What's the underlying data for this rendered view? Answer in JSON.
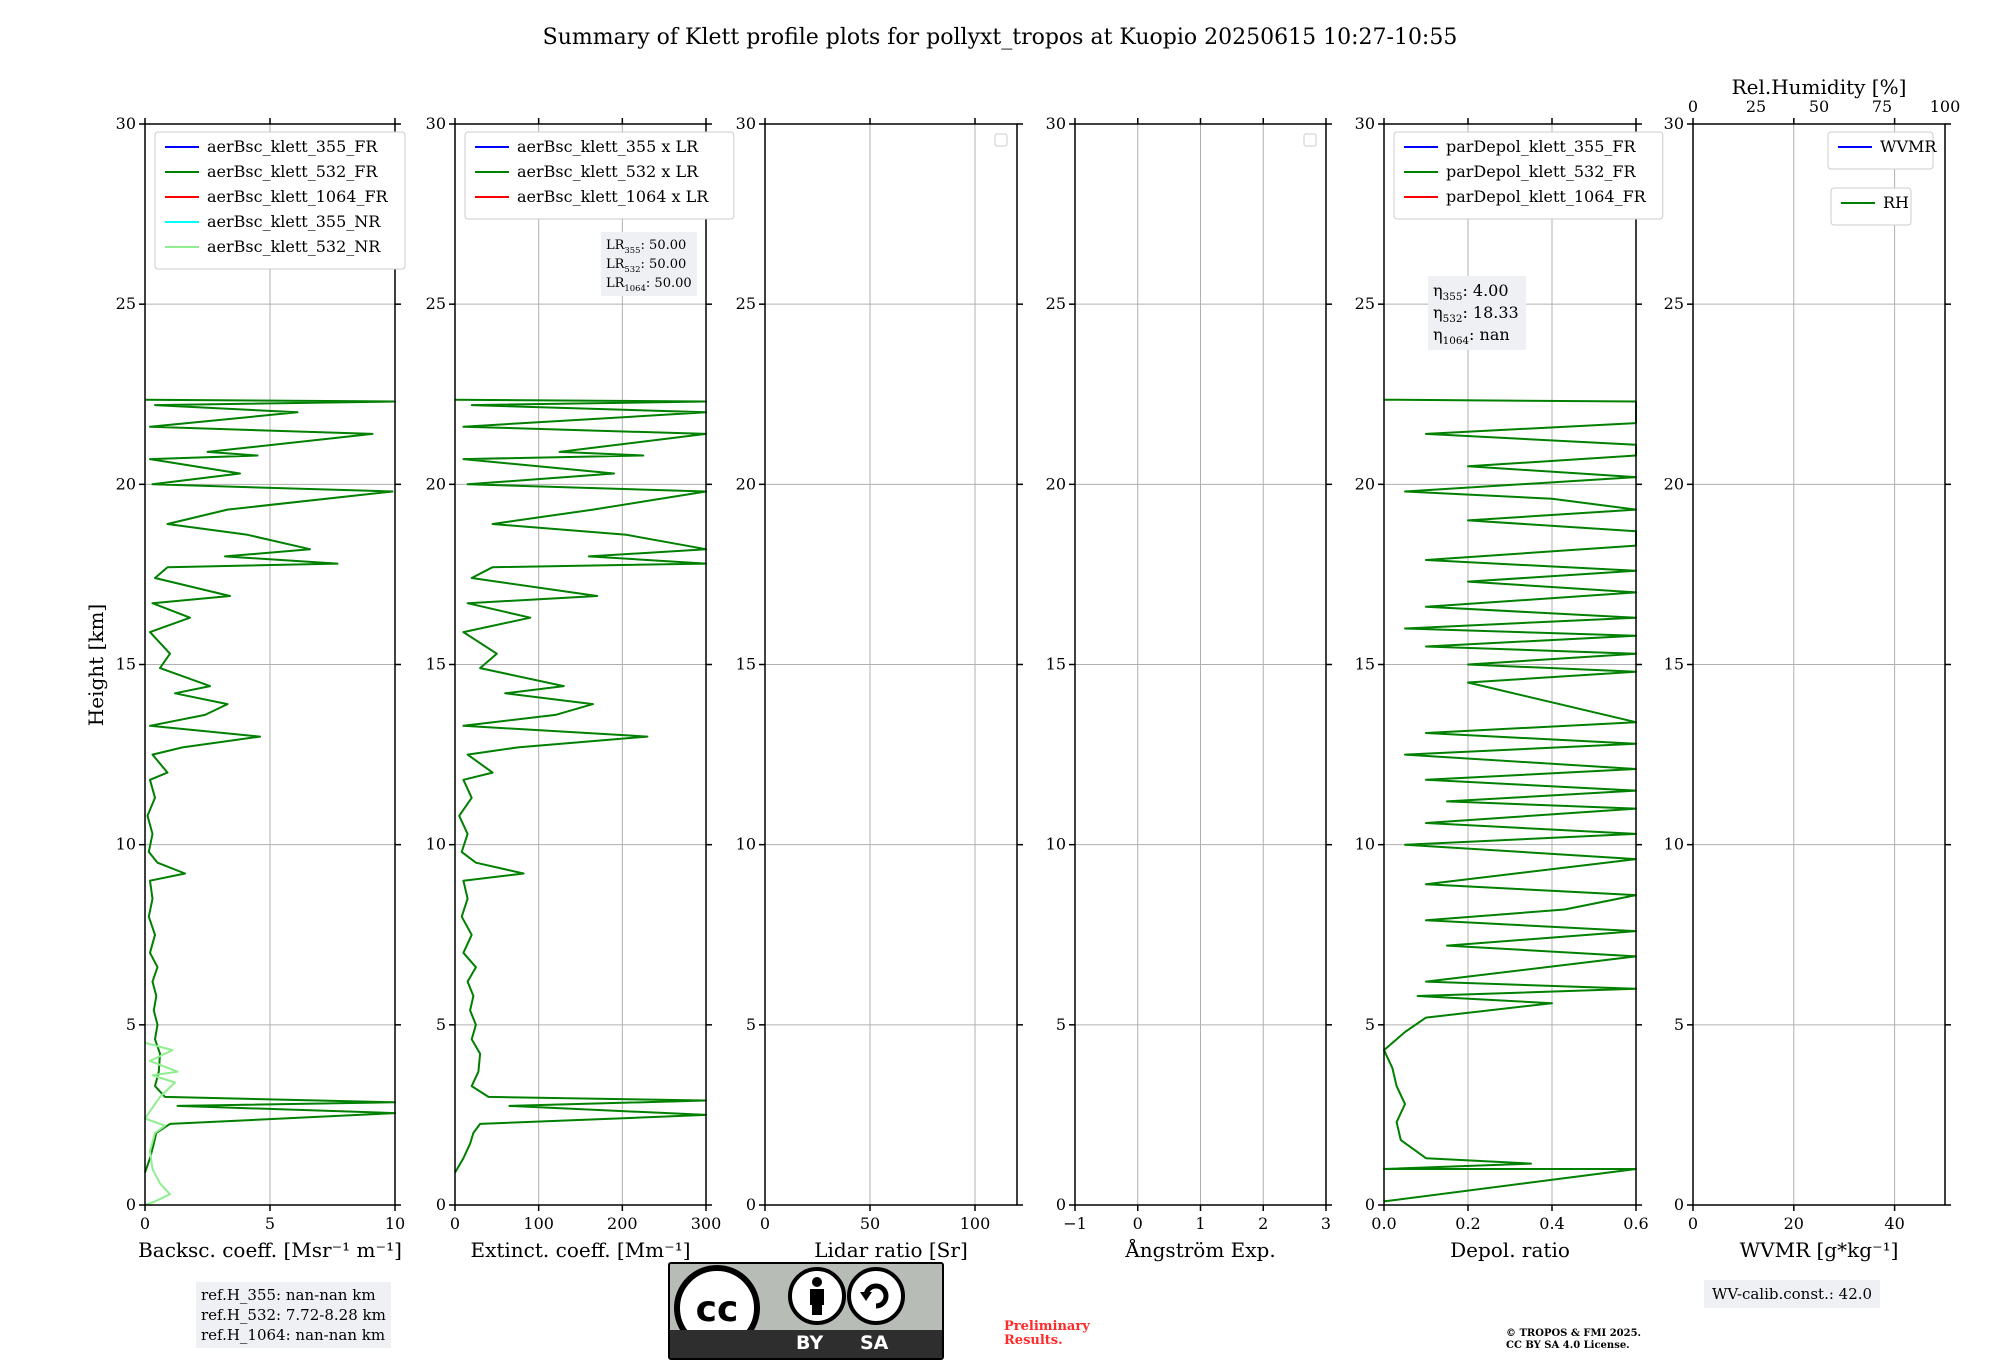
{
  "title": "Summary of Klett profile plots for pollyxt_tropos at Kuopio 20250615 10:27-10:55",
  "y_label": "Height [km]",
  "y_ticks": [
    "0",
    "5",
    "10",
    "15",
    "20",
    "25",
    "30"
  ],
  "colors": {
    "blue": "#0000ff",
    "green": "#008000",
    "red": "#ff0000",
    "cyan": "#00ffff",
    "lightgreen": "#90ee90",
    "grid": "#b0b0b0",
    "note_bg": "#eef0f3"
  },
  "chart_data": [
    {
      "type": "line",
      "id": "bsc",
      "xlabel": "Backsc. coeff. [Msr⁻¹ m⁻¹]",
      "xlim": [
        0,
        10
      ],
      "ylim": [
        0,
        30
      ],
      "x_ticks": [
        0,
        5,
        10
      ],
      "x_tick_labels": [
        "0",
        "5",
        "10"
      ],
      "legend": [
        "aerBsc_klett_355_FR",
        "aerBsc_klett_532_FR",
        "aerBsc_klett_1064_FR",
        "aerBsc_klett_355_NR",
        "aerBsc_klett_532_NR"
      ],
      "legend_colors": [
        "blue",
        "green",
        "red",
        "cyan",
        "lightgreen"
      ],
      "series": [
        {
          "name": "aerBsc_klett_532_FR",
          "color": "green",
          "points": [
            [
              0.0,
              0.9
            ],
            [
              0.2,
              1.3
            ],
            [
              0.35,
              1.7
            ],
            [
              0.45,
              2.0
            ],
            [
              1.0,
              2.25
            ],
            [
              10,
              2.55
            ],
            [
              1.3,
              2.75
            ],
            [
              10,
              2.85
            ],
            [
              0.8,
              3.0
            ],
            [
              0.4,
              3.3
            ],
            [
              0.55,
              3.7
            ],
            [
              0.6,
              4.2
            ],
            [
              0.4,
              4.6
            ],
            [
              0.5,
              5.0
            ],
            [
              0.35,
              5.4
            ],
            [
              0.45,
              5.8
            ],
            [
              0.3,
              6.2
            ],
            [
              0.5,
              6.6
            ],
            [
              0.2,
              7.0
            ],
            [
              0.4,
              7.5
            ],
            [
              0.15,
              8.0
            ],
            [
              0.3,
              8.5
            ],
            [
              0.2,
              9.0
            ],
            [
              1.6,
              9.2
            ],
            [
              0.5,
              9.5
            ],
            [
              0.15,
              9.8
            ],
            [
              0.3,
              10.3
            ],
            [
              0.1,
              10.8
            ],
            [
              0.4,
              11.3
            ],
            [
              0.2,
              11.8
            ],
            [
              0.9,
              12.0
            ],
            [
              0.3,
              12.5
            ],
            [
              1.5,
              12.7
            ],
            [
              4.6,
              13.0
            ],
            [
              0.2,
              13.3
            ],
            [
              2.4,
              13.6
            ],
            [
              3.3,
              13.9
            ],
            [
              1.2,
              14.2
            ],
            [
              2.6,
              14.4
            ],
            [
              0.6,
              14.9
            ],
            [
              1.0,
              15.3
            ],
            [
              0.2,
              15.9
            ],
            [
              1.8,
              16.3
            ],
            [
              0.3,
              16.7
            ],
            [
              3.4,
              16.9
            ],
            [
              0.4,
              17.4
            ],
            [
              0.9,
              17.7
            ],
            [
              7.7,
              17.8
            ],
            [
              3.2,
              18.0
            ],
            [
              6.6,
              18.2
            ],
            [
              4.1,
              18.6
            ],
            [
              0.9,
              18.9
            ],
            [
              3.3,
              19.3
            ],
            [
              9.9,
              19.8
            ],
            [
              0.3,
              20.0
            ],
            [
              3.8,
              20.3
            ],
            [
              0.2,
              20.7
            ],
            [
              4.5,
              20.8
            ],
            [
              2.5,
              20.9
            ],
            [
              9.1,
              21.4
            ],
            [
              0.2,
              21.6
            ],
            [
              6.1,
              22.0
            ],
            [
              0.4,
              22.2
            ],
            [
              10,
              22.3
            ],
            [
              0.0,
              22.35
            ]
          ]
        },
        {
          "name": "aerBsc_klett_532_NR",
          "color": "lightgreen",
          "points": [
            [
              0.0,
              0.0
            ],
            [
              0.4,
              0.1
            ],
            [
              1.0,
              0.3
            ],
            [
              0.6,
              0.6
            ],
            [
              0.3,
              1.0
            ],
            [
              0.2,
              1.5
            ],
            [
              0.4,
              2.0
            ],
            [
              0.8,
              2.2
            ],
            [
              0.0,
              2.4
            ],
            [
              0.6,
              3.0
            ],
            [
              1.2,
              3.4
            ],
            [
              0.3,
              3.6
            ],
            [
              1.3,
              3.7
            ],
            [
              0.2,
              4.0
            ],
            [
              1.1,
              4.3
            ],
            [
              0.0,
              4.5
            ]
          ]
        }
      ],
      "note": {
        "lines": [
          "ref.H_355: nan-nan km",
          "ref.H_532: 7.72-8.28 km",
          "ref.H_1064: nan-nan km"
        ],
        "placement": "below"
      }
    },
    {
      "type": "line",
      "id": "ext",
      "xlabel": "Extinct. coeff. [Mm⁻¹]",
      "xlim": [
        0,
        300
      ],
      "ylim": [
        0,
        30
      ],
      "x_ticks": [
        0,
        100,
        200,
        300
      ],
      "x_tick_labels": [
        "0",
        "100",
        "200",
        "300"
      ],
      "legend": [
        "aerBsc_klett_355 x LR",
        "aerBsc_klett_532 x LR",
        "aerBsc_klett_1064 x LR"
      ],
      "legend_colors": [
        "blue",
        "green",
        "red"
      ],
      "series": [
        {
          "name": "aerBsc_klett_532 x LR",
          "color": "green",
          "points": [
            [
              0,
              0.9
            ],
            [
              10,
              1.3
            ],
            [
              18,
              1.7
            ],
            [
              22,
              2.0
            ],
            [
              30,
              2.25
            ],
            [
              300,
              2.5
            ],
            [
              65,
              2.75
            ],
            [
              300,
              2.9
            ],
            [
              40,
              3.0
            ],
            [
              20,
              3.3
            ],
            [
              28,
              3.7
            ],
            [
              30,
              4.2
            ],
            [
              20,
              4.6
            ],
            [
              25,
              5.0
            ],
            [
              18,
              5.4
            ],
            [
              22,
              5.8
            ],
            [
              15,
              6.2
            ],
            [
              25,
              6.6
            ],
            [
              10,
              7.0
            ],
            [
              20,
              7.5
            ],
            [
              8,
              8.0
            ],
            [
              15,
              8.5
            ],
            [
              10,
              9.0
            ],
            [
              82,
              9.2
            ],
            [
              25,
              9.5
            ],
            [
              8,
              9.8
            ],
            [
              15,
              10.3
            ],
            [
              5,
              10.8
            ],
            [
              20,
              11.3
            ],
            [
              10,
              11.8
            ],
            [
              45,
              12.0
            ],
            [
              15,
              12.5
            ],
            [
              75,
              12.7
            ],
            [
              230,
              13.0
            ],
            [
              10,
              13.3
            ],
            [
              120,
              13.6
            ],
            [
              165,
              13.9
            ],
            [
              60,
              14.2
            ],
            [
              130,
              14.4
            ],
            [
              30,
              14.9
            ],
            [
              50,
              15.3
            ],
            [
              10,
              15.9
            ],
            [
              90,
              16.3
            ],
            [
              15,
              16.7
            ],
            [
              170,
              16.9
            ],
            [
              20,
              17.4
            ],
            [
              45,
              17.7
            ],
            [
              300,
              17.8
            ],
            [
              160,
              18.0
            ],
            [
              300,
              18.2
            ],
            [
              205,
              18.6
            ],
            [
              45,
              18.9
            ],
            [
              165,
              19.3
            ],
            [
              300,
              19.8
            ],
            [
              15,
              20.0
            ],
            [
              190,
              20.3
            ],
            [
              10,
              20.7
            ],
            [
              225,
              20.8
            ],
            [
              125,
              20.9
            ],
            [
              300,
              21.4
            ],
            [
              10,
              21.6
            ],
            [
              300,
              22.0
            ],
            [
              20,
              22.2
            ],
            [
              300,
              22.3
            ],
            [
              0,
              22.35
            ]
          ]
        }
      ],
      "note": {
        "lines": [
          "LR355: 50.00",
          "LR532: 50.00",
          "LR1064: 50.00"
        ],
        "placement": "top-right"
      }
    },
    {
      "type": "line",
      "id": "lr",
      "xlabel": "Lidar ratio [Sr]",
      "xlim": [
        0,
        120
      ],
      "ylim": [
        0,
        30
      ],
      "x_ticks": [
        0,
        50,
        100
      ],
      "x_tick_labels": [
        "0",
        "50",
        "100"
      ],
      "legend": [],
      "legend_colors": [],
      "series": []
    },
    {
      "type": "line",
      "id": "ang",
      "xlabel": "Ångström Exp.",
      "xlim": [
        -1,
        3
      ],
      "ylim": [
        0,
        30
      ],
      "x_ticks": [
        -1,
        0,
        1,
        2,
        3
      ],
      "x_tick_labels": [
        "−1",
        "0",
        "1",
        "2",
        "3"
      ],
      "legend": [],
      "legend_colors": [],
      "series": []
    },
    {
      "type": "line",
      "id": "dep",
      "xlabel": "Depol. ratio",
      "xlim": [
        0,
        0.6
      ],
      "ylim": [
        0,
        30
      ],
      "x_ticks": [
        0,
        0.2,
        0.4,
        0.6
      ],
      "x_tick_labels": [
        "0.0",
        "0.2",
        "0.4",
        "0.6"
      ],
      "legend": [
        "parDepol_klett_355_FR",
        "parDepol_klett_532_FR",
        "parDepol_klett_1064_FR"
      ],
      "legend_colors": [
        "blue",
        "green",
        "red"
      ],
      "series": [
        {
          "name": "parDepol_klett_532_FR",
          "color": "green",
          "points": [
            [
              0.0,
              0.1
            ],
            [
              0.6,
              1.0
            ],
            [
              0.0,
              1.0
            ],
            [
              0.35,
              1.15
            ],
            [
              0.1,
              1.3
            ],
            [
              0.04,
              1.8
            ],
            [
              0.03,
              2.3
            ],
            [
              0.05,
              2.8
            ],
            [
              0.03,
              3.3
            ],
            [
              0.02,
              3.8
            ],
            [
              0.0,
              4.3
            ],
            [
              0.05,
              4.8
            ],
            [
              0.1,
              5.2
            ],
            [
              0.4,
              5.6
            ],
            [
              0.08,
              5.8
            ],
            [
              0.6,
              6.0
            ],
            [
              0.1,
              6.2
            ],
            [
              0.6,
              6.9
            ],
            [
              0.15,
              7.2
            ],
            [
              0.6,
              7.6
            ],
            [
              0.1,
              7.9
            ],
            [
              0.43,
              8.2
            ],
            [
              0.6,
              8.6
            ],
            [
              0.1,
              8.9
            ],
            [
              0.6,
              9.6
            ],
            [
              0.05,
              10.0
            ],
            [
              0.6,
              10.3
            ],
            [
              0.1,
              10.6
            ],
            [
              0.6,
              11.0
            ],
            [
              0.15,
              11.2
            ],
            [
              0.6,
              11.5
            ],
            [
              0.1,
              11.8
            ],
            [
              0.6,
              12.1
            ],
            [
              0.05,
              12.5
            ],
            [
              0.6,
              12.8
            ],
            [
              0.1,
              13.1
            ],
            [
              0.6,
              13.4
            ],
            [
              0.2,
              14.5
            ],
            [
              0.6,
              14.8
            ],
            [
              0.2,
              15.0
            ],
            [
              0.6,
              15.3
            ],
            [
              0.1,
              15.5
            ],
            [
              0.6,
              15.8
            ],
            [
              0.05,
              16.0
            ],
            [
              0.6,
              16.3
            ],
            [
              0.1,
              16.6
            ],
            [
              0.6,
              17.0
            ],
            [
              0.2,
              17.3
            ],
            [
              0.6,
              17.6
            ],
            [
              0.1,
              17.9
            ],
            [
              0.6,
              18.3
            ],
            [
              0.6,
              18.7
            ],
            [
              0.2,
              19.0
            ],
            [
              0.6,
              19.3
            ],
            [
              0.4,
              19.6
            ],
            [
              0.05,
              19.8
            ],
            [
              0.6,
              20.2
            ],
            [
              0.2,
              20.5
            ],
            [
              0.6,
              20.8
            ],
            [
              0.6,
              21.1
            ],
            [
              0.1,
              21.4
            ],
            [
              0.6,
              21.7
            ],
            [
              0.6,
              22.0
            ],
            [
              0.6,
              22.3
            ],
            [
              0.0,
              22.35
            ]
          ]
        }
      ],
      "note": {
        "lines": [
          "η355: 4.00",
          "η532: 18.33",
          "η1064: nan"
        ],
        "placement": "upper-left"
      }
    },
    {
      "type": "line",
      "id": "wv",
      "xlabel": "WVMR [g*kg⁻¹]",
      "top_xlabel": "Rel.Humidity [%]",
      "xlim": [
        0,
        50
      ],
      "ylim": [
        0,
        30
      ],
      "x_ticks": [
        0,
        20,
        40
      ],
      "x_tick_labels": [
        "0",
        "20",
        "40"
      ],
      "top_ticks": [
        0,
        25,
        50,
        75,
        100
      ],
      "top_tick_labels": [
        "0",
        "25",
        "50",
        "75",
        "100"
      ],
      "legend": [
        "WVMR"
      ],
      "legend_colors": [
        "blue"
      ],
      "legend2": [
        "RH"
      ],
      "legend2_colors": [
        "green"
      ],
      "series": [],
      "note": {
        "lines": [
          "WV-calib.const.: 42.0"
        ],
        "placement": "below"
      }
    }
  ],
  "footer": {
    "cc_by": "BY",
    "cc_sa": "SA",
    "prelim": [
      "Preliminary",
      "Results."
    ],
    "copyright": [
      "© TROPOS & FMI 2025.",
      "CC BY SA 4.0 License."
    ]
  }
}
